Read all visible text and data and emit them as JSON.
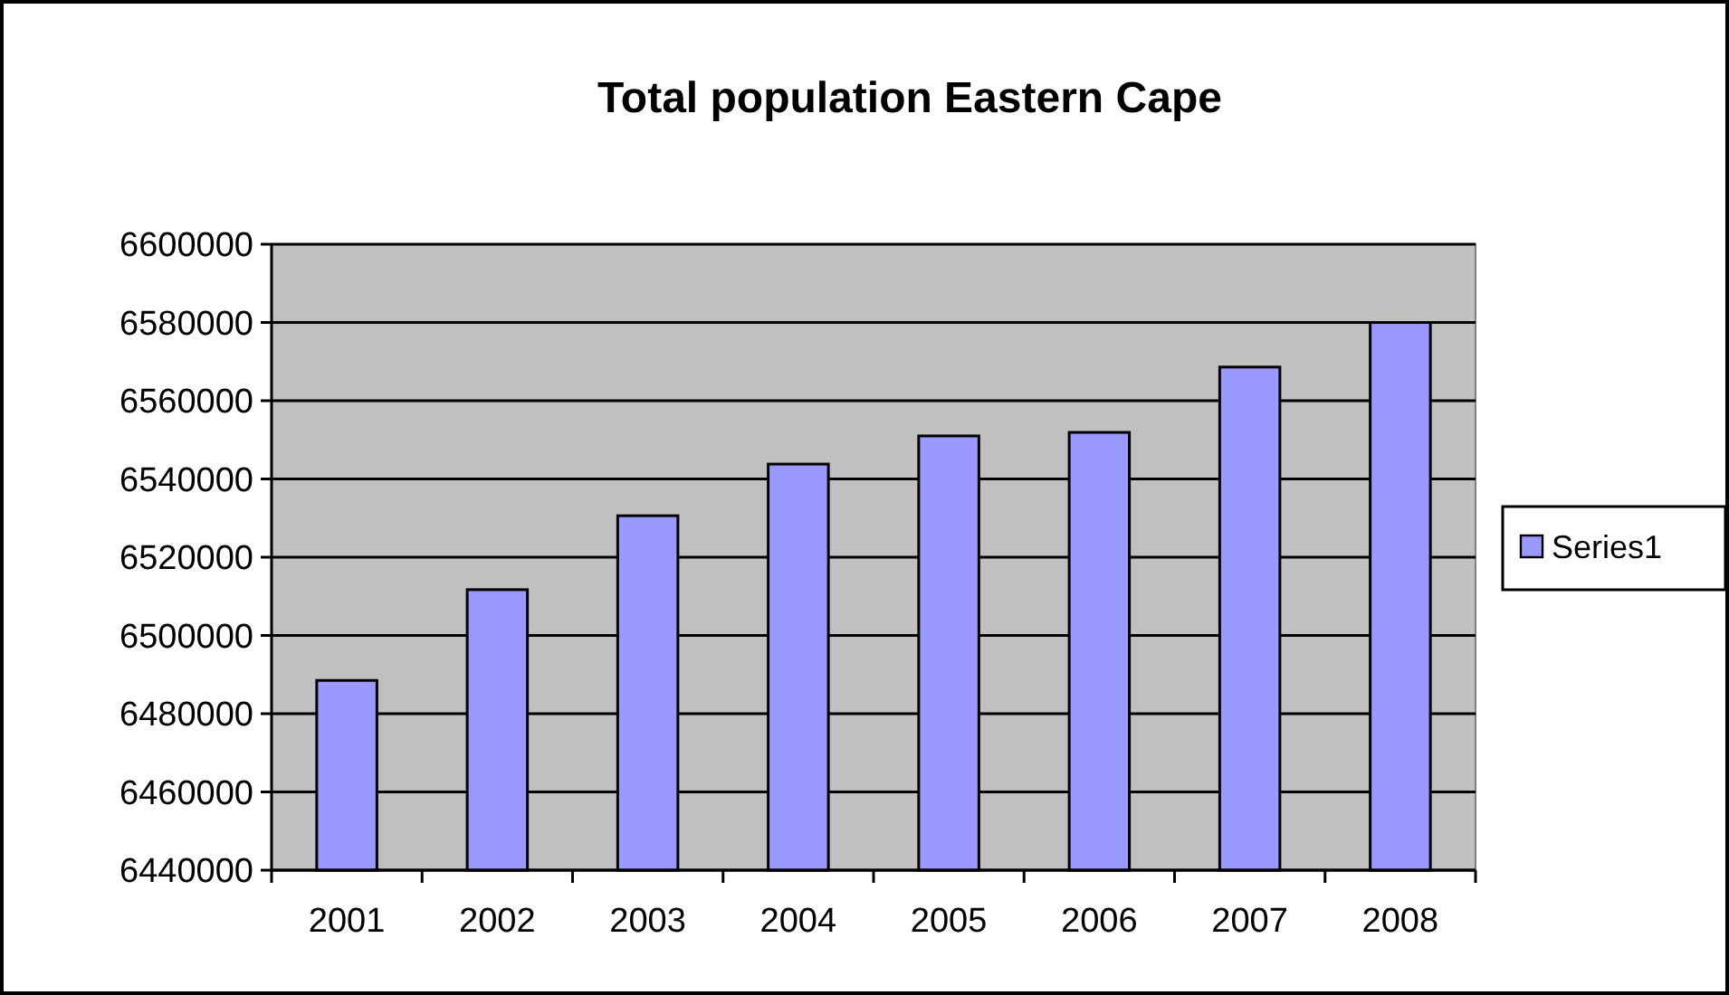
{
  "chart_data": {
    "type": "bar",
    "title": "Total population Eastern Cape",
    "categories": [
      "2001",
      "2002",
      "2003",
      "2004",
      "2005",
      "2006",
      "2007",
      "2008"
    ],
    "series": [
      {
        "name": "Series1",
        "color": "#9999ff",
        "values": [
          6488500,
          6511700,
          6530600,
          6543800,
          6551000,
          6551900,
          6568600,
          6580000
        ]
      }
    ],
    "ylim": [
      6440000,
      6600000
    ],
    "yticks": [
      6440000,
      6460000,
      6480000,
      6500000,
      6520000,
      6540000,
      6560000,
      6580000,
      6600000
    ],
    "grid": "y",
    "legend": "right"
  }
}
